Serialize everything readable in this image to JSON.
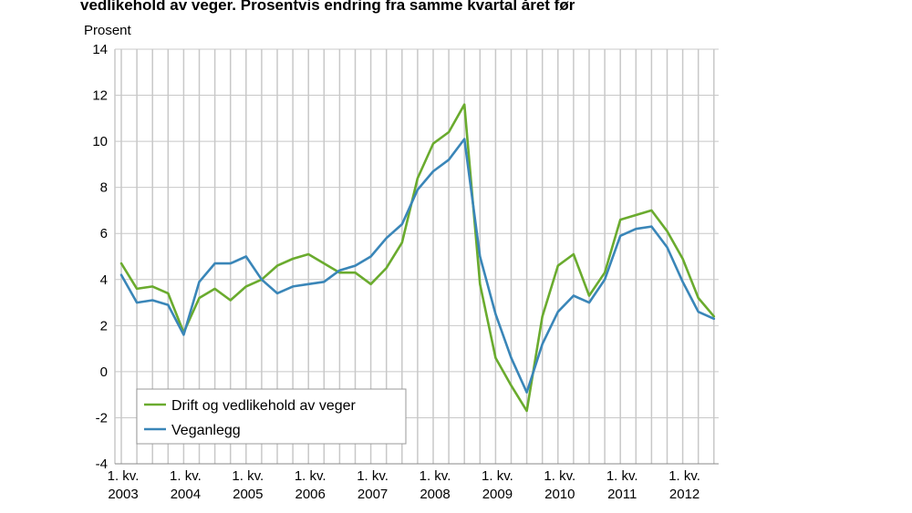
{
  "chart_data": {
    "type": "line",
    "title": "vedlikehold av veger. Prosentvis endring fra samme kvartal året før",
    "ylabel": "Prosent",
    "xlabel": "",
    "ylim": [
      -4,
      14
    ],
    "yticks": [
      "14",
      "12",
      "10",
      "8",
      "6",
      "4",
      "2",
      "0",
      "-2",
      "-4"
    ],
    "ytick_values": [
      14,
      12,
      10,
      8,
      6,
      4,
      2,
      0,
      -2,
      -4
    ],
    "xtick_quarter_label": "1. kv.",
    "xtick_years": [
      "2003",
      "2004",
      "2005",
      "2006",
      "2007",
      "2008",
      "2009",
      "2010",
      "2011",
      "2012"
    ],
    "grid": true,
    "legend_position": "bottom-left",
    "colors": {
      "drift": "#6aab2e",
      "veganlegg": "#3a86b8",
      "grid": "#c8c8c8",
      "axis": "#888888"
    },
    "x": [
      "2003K1",
      "2003K2",
      "2003K3",
      "2003K4",
      "2004K1",
      "2004K2",
      "2004K3",
      "2004K4",
      "2005K1",
      "2005K2",
      "2005K3",
      "2005K4",
      "2006K1",
      "2006K2",
      "2006K3",
      "2006K4",
      "2007K1",
      "2007K2",
      "2007K3",
      "2007K4",
      "2008K1",
      "2008K2",
      "2008K3",
      "2008K4",
      "2009K1",
      "2009K2",
      "2009K3",
      "2009K4",
      "2010K1",
      "2010K2",
      "2010K3",
      "2010K4",
      "2011K1",
      "2011K2",
      "2011K3",
      "2011K4",
      "2012K1",
      "2012K2",
      "2012K3"
    ],
    "series": [
      {
        "name": "Drift og vedlikehold av veger",
        "values": [
          4.7,
          3.6,
          3.7,
          3.4,
          1.7,
          3.2,
          3.6,
          3.1,
          3.7,
          4.0,
          4.6,
          4.9,
          5.1,
          4.7,
          4.3,
          4.3,
          3.8,
          4.5,
          5.6,
          8.4,
          9.9,
          10.4,
          11.6,
          3.8,
          0.6,
          -0.6,
          -1.7,
          2.4,
          4.6,
          5.1,
          3.3,
          4.3,
          6.6,
          6.8,
          7.0,
          6.1,
          4.9,
          3.2,
          2.4
        ]
      },
      {
        "name": "Veganlegg",
        "values": [
          4.2,
          3.0,
          3.1,
          2.9,
          1.6,
          3.9,
          4.7,
          4.7,
          5.0,
          4.0,
          3.4,
          3.7,
          3.8,
          3.9,
          4.4,
          4.6,
          5.0,
          5.8,
          6.4,
          7.9,
          8.7,
          9.2,
          10.1,
          5.0,
          2.5,
          0.6,
          -0.9,
          1.2,
          2.6,
          3.3,
          3.0,
          4.0,
          5.9,
          6.2,
          6.3,
          5.4,
          3.9,
          2.6,
          2.3
        ]
      }
    ]
  }
}
